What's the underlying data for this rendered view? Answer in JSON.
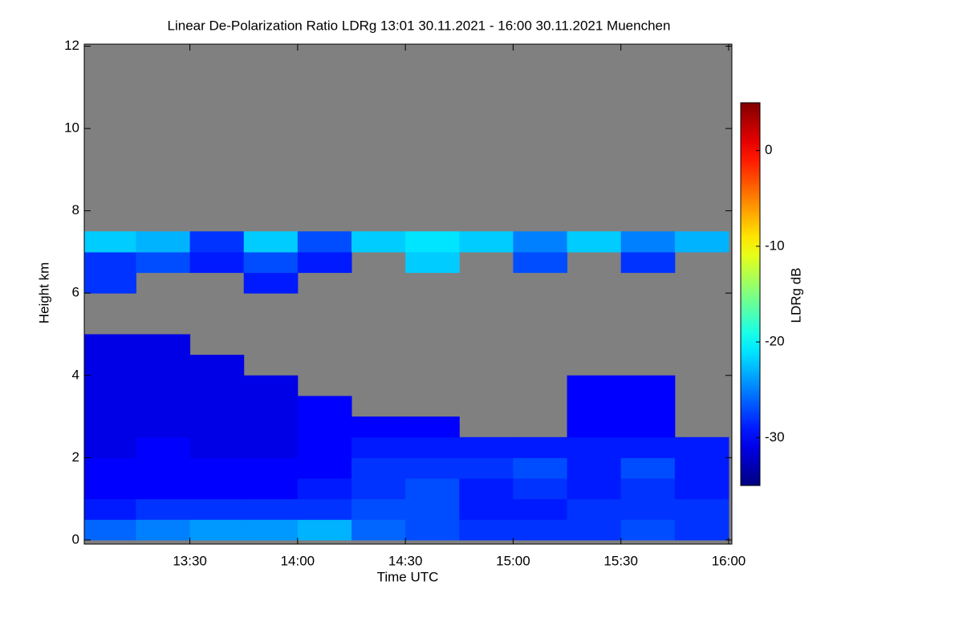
{
  "chart_data": {
    "type": "heatmap",
    "title": "Linear De-Polarization Ratio LDRg   13:01 30.11.2021 - 16:00 30.11.2021 Muenchen",
    "x_label": "Time UTC",
    "y_label": "Height km",
    "colorbar_label": "LDRg dB",
    "nan_color": "#808080",
    "xlim": [
      13.01,
      16.015
    ],
    "xticks": [
      {
        "value": 13.5,
        "label": "13:30"
      },
      {
        "value": 14.0,
        "label": "14:00"
      },
      {
        "value": 14.5,
        "label": "14:30"
      },
      {
        "value": 15.0,
        "label": "15:00"
      },
      {
        "value": 15.5,
        "label": "15:30"
      },
      {
        "value": 16.0,
        "label": "16:00"
      }
    ],
    "ylim": [
      -0.1,
      12.05
    ],
    "yticks": [
      0,
      2,
      4,
      6,
      8,
      10,
      12
    ],
    "clim": [
      -35,
      5
    ],
    "cticks": [
      0,
      -10,
      -20,
      -30
    ],
    "xbins": [
      13.0,
      13.25,
      13.5,
      13.75,
      14.0,
      14.25,
      14.5,
      14.75,
      15.0,
      15.25,
      15.5,
      15.75,
      16.0
    ],
    "ybins": [
      0,
      0.5,
      1,
      1.5,
      2,
      2.5,
      3,
      3.5,
      4,
      4.5,
      5,
      5.5,
      6,
      6.5,
      7,
      7.5,
      8
    ],
    "values": [
      [
        -26,
        -25,
        -24,
        -24,
        -23,
        -26,
        -27,
        -28,
        -28,
        -28,
        -27,
        -28
      ],
      [
        -29,
        -28,
        -28,
        -28,
        -28,
        -27,
        -27,
        -29,
        -29,
        -28,
        -28,
        -28
      ],
      [
        -30,
        -30,
        -30,
        -30,
        -29,
        -28,
        -27,
        -29,
        -28,
        -29,
        -28,
        -29
      ],
      [
        -30,
        -30,
        -30,
        -30,
        -30,
        -28,
        -28,
        -28,
        -27,
        -29,
        -27,
        -29
      ],
      [
        -31,
        -30,
        -31,
        -31,
        -30,
        -29,
        -29,
        -29,
        -29,
        -29,
        -29,
        -29
      ],
      [
        -31,
        -31,
        -31,
        -31,
        -30,
        -30,
        -30,
        null,
        null,
        -30,
        -30,
        null
      ],
      [
        -31,
        -31,
        -31,
        -31,
        -30,
        null,
        null,
        null,
        null,
        -30,
        -30,
        null
      ],
      [
        -31,
        -31,
        -31,
        -31,
        null,
        null,
        null,
        null,
        null,
        -30,
        -30,
        null
      ],
      [
        -31,
        -31,
        -31,
        null,
        null,
        null,
        null,
        null,
        null,
        null,
        null,
        null
      ],
      [
        -31,
        -31,
        null,
        null,
        null,
        null,
        null,
        null,
        null,
        null,
        null,
        null
      ],
      [
        null,
        null,
        null,
        null,
        null,
        null,
        null,
        null,
        null,
        null,
        null,
        null
      ],
      [
        null,
        null,
        null,
        null,
        null,
        null,
        null,
        null,
        null,
        null,
        null,
        null
      ],
      [
        -28,
        null,
        null,
        -29,
        null,
        null,
        null,
        null,
        null,
        null,
        null,
        null
      ],
      [
        -28,
        -27,
        -29,
        -27,
        -29,
        null,
        -22,
        null,
        -27,
        null,
        -28,
        null
      ],
      [
        -22,
        -23,
        -28,
        -22,
        -27,
        -22,
        -21,
        -22,
        -25,
        -22,
        -25,
        -23
      ],
      [
        null,
        null,
        null,
        null,
        null,
        null,
        null,
        null,
        null,
        null,
        null,
        null
      ]
    ]
  }
}
